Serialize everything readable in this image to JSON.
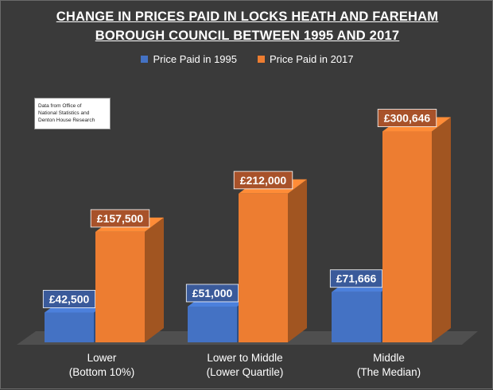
{
  "chart_data": {
    "type": "bar",
    "title_lines": [
      "CHANGE IN PRICES PAID IN LOCKS HEATH AND FAREHAM",
      "BOROUGH COUNCIL BETWEEN 1995 AND 2017"
    ],
    "categories": [
      [
        "Lower",
        "(Bottom 10%)"
      ],
      [
        "Lower to Middle",
        "(Lower Quartile)"
      ],
      [
        "Middle",
        "(The Median)"
      ]
    ],
    "series": [
      {
        "name": "Price Paid in 1995",
        "color": "#4472c4",
        "values": [
          42500,
          51000,
          71666
        ],
        "labels": [
          "£42,500",
          "£51,000",
          "£71,666"
        ]
      },
      {
        "name": "Price Paid in 2017",
        "color": "#ed7d31",
        "values": [
          157500,
          212000,
          300646
        ],
        "labels": [
          "£157,500",
          "£212,000",
          "£300,646"
        ]
      }
    ],
    "ylim": [
      0,
      350000
    ],
    "grid": false,
    "legend_position": "top"
  },
  "note": {
    "line1": "Data from Office of",
    "line2": "National Statistics and",
    "line3": "Denton House Research"
  }
}
